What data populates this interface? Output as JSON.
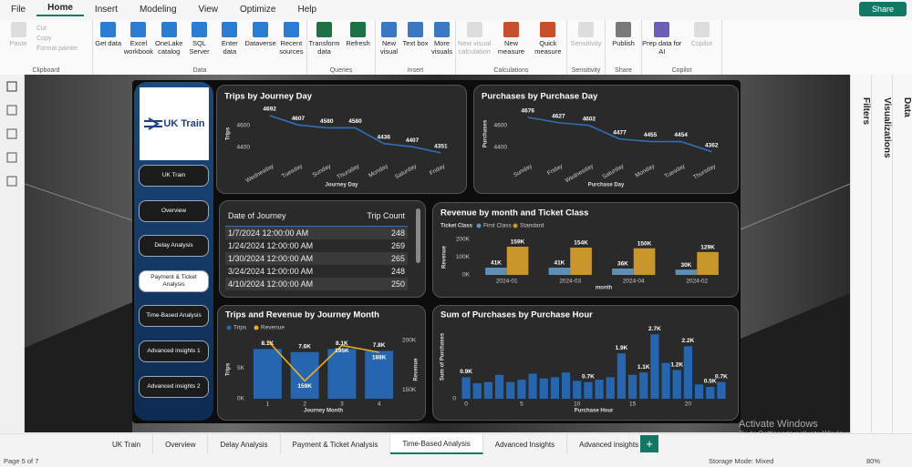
{
  "menu": [
    "File",
    "Home",
    "Insert",
    "Modeling",
    "View",
    "Optimize",
    "Help"
  ],
  "share": "Share",
  "ribbon": [
    {
      "group": "Clipboard",
      "items": [
        "Paste",
        "Cut",
        "Copy",
        "Format painter"
      ]
    },
    {
      "group": "Data",
      "items": [
        "Get data",
        "Excel workbook",
        "OneLake catalog",
        "SQL Server",
        "Enter data",
        "Dataverse",
        "Recent sources"
      ]
    },
    {
      "group": "Queries",
      "items": [
        "Transform data",
        "Refresh"
      ]
    },
    {
      "group": "Insert",
      "items": [
        "New visual",
        "Text box",
        "More visuals"
      ]
    },
    {
      "group": "Calculations",
      "items": [
        "New visual calculation",
        "New measure",
        "Quick measure"
      ]
    },
    {
      "group": "Sensitivity",
      "items": [
        "Sensitivity"
      ]
    },
    {
      "group": "Share",
      "items": [
        "Publish"
      ]
    },
    {
      "group": "Copilot",
      "items": [
        "Prep data for AI",
        "Copilot"
      ]
    }
  ],
  "panes": [
    "Filters",
    "Visualizations",
    "Data"
  ],
  "nav": {
    "logo": "UK Train",
    "buttons": [
      "UK Train",
      "Overview",
      "Delay Analysis",
      "Payment & Ticket Analysis",
      "Time-Based Analysis",
      "Advanced insights 1",
      "Advanced insights 2"
    ]
  },
  "visuals": {
    "trips_day": {
      "type": "line",
      "title": "Trips by Journey Day",
      "y_label": "Trips",
      "x_label": "Journey Day",
      "color": "#2f6fb8",
      "categories": [
        "Wednesday",
        "Tuesday",
        "Sunday",
        "Thursday",
        "Monday",
        "Saturday",
        "Friday"
      ],
      "values": [
        4692,
        4607,
        4580,
        4580,
        4436,
        4407,
        4351
      ],
      "ylim": [
        4300,
        4750
      ],
      "yticks": [
        4400,
        4600
      ]
    },
    "purchase_day": {
      "type": "line",
      "title": "Purchases by Purchase Day",
      "y_label": "Purchases",
      "x_label": "Purchase Day",
      "color": "#2f6fb8",
      "categories": [
        "Sunday",
        "Friday",
        "Wednesday",
        "Saturday",
        "Monday",
        "Tuesday",
        "Thursday"
      ],
      "values": [
        4676,
        4627,
        4602,
        4477,
        4455,
        4454,
        4362
      ],
      "ylim": [
        4300,
        4750
      ],
      "yticks": [
        4400,
        4600
      ]
    },
    "journey_table": {
      "columns": [
        "Date of Journey",
        "Trip Count"
      ],
      "rows": [
        [
          "1/7/2024 12:00:00 AM",
          248
        ],
        [
          "1/24/2024 12:00:00 AM",
          269
        ],
        [
          "1/30/2024 12:00:00 AM",
          265
        ],
        [
          "3/24/2024 12:00:00 AM",
          248
        ],
        [
          "4/10/2024 12:00:00 AM",
          250
        ]
      ]
    },
    "revenue_month": {
      "type": "grouped_bar",
      "title": "Revenue by month and Ticket Class",
      "legend_title": "Ticket Class",
      "y_label": "Revenue",
      "x_label": "month",
      "categories": [
        "2024-01",
        "2024-03",
        "2024-04",
        "2024-02"
      ],
      "series": [
        {
          "name": "First Class",
          "color": "#5f8fb4",
          "values": [
            41000,
            41000,
            36000,
            30000
          ],
          "value_labels": [
            "41K",
            "41K",
            "36K",
            "30K"
          ]
        },
        {
          "name": "Standard",
          "color": "#c8962a",
          "values": [
            159000,
            154000,
            150000,
            129000
          ],
          "value_labels": [
            "159K",
            "154K",
            "150K",
            "129K"
          ]
        }
      ],
      "ylim": [
        0,
        200000
      ],
      "yticks": [
        {
          "value": 0,
          "label": "0K"
        },
        {
          "value": 100000,
          "label": "100K"
        },
        {
          "value": 200000,
          "label": "200K"
        }
      ]
    },
    "trips_revenue": {
      "type": "combo",
      "title": "Trips and Revenue by Journey Month",
      "x_label": "Journey Month",
      "y_label": "Trips",
      "y2_label": "Revenue",
      "categories": [
        1,
        2,
        3,
        4
      ],
      "series": [
        {
          "name": "Trips",
          "color": "#2666b0",
          "values": [
            8100,
            7600,
            8100,
            7800
          ],
          "value_labels": [
            "8.1K",
            "7.6K",
            "8.1K",
            "7.8K"
          ]
        },
        {
          "name": "Revenue",
          "color": "#e8b020",
          "axis": "y2",
          "values": [
            200000,
            159000,
            195000,
            188000
          ],
          "value_labels": [
            null,
            "159K",
            "195K",
            "188K"
          ]
        }
      ],
      "ylim": [
        0,
        9500
      ],
      "yticks": [
        {
          "value": 0,
          "label": "0K"
        },
        {
          "value": 5000,
          "label": "5K"
        }
      ],
      "y2lim": [
        141000,
        200000
      ],
      "y2ticks": [
        {
          "value": 150000,
          "label": "150K"
        },
        {
          "value": 200000,
          "label": "200K"
        }
      ]
    },
    "purchase_hour": {
      "type": "bar",
      "title": "Sum of Purchases by Purchase Hour",
      "y_label": "Sum of Purchases",
      "x_label": "Purchase Hour",
      "color": "#2666b0",
      "x": [
        0,
        1,
        2,
        3,
        4,
        5,
        6,
        7,
        8,
        9,
        10,
        11,
        12,
        13,
        14,
        15,
        16,
        17,
        18,
        19,
        20,
        21,
        22,
        23
      ],
      "values": [
        900,
        650,
        700,
        1000,
        700,
        800,
        1050,
        850,
        900,
        1100,
        750,
        700,
        800,
        900,
        1900,
        1000,
        1100,
        2700,
        1500,
        1200,
        2200,
        600,
        500,
        700
      ],
      "value_labels": [
        "0.9K",
        null,
        null,
        null,
        null,
        null,
        null,
        null,
        null,
        null,
        null,
        "0.7K",
        null,
        null,
        "1.9K",
        null,
        "1.1K",
        "2.7K",
        null,
        "1.2K",
        "2.2K",
        null,
        "0.5K",
        "0.7K"
      ],
      "xlim": [
        -0.5,
        23.5
      ],
      "xticks": [
        0,
        5,
        10,
        15,
        20
      ],
      "ylim": [
        0,
        2900
      ],
      "yticks": [
        0
      ]
    }
  },
  "tabs": [
    "UK Train",
    "Overview",
    "Delay Analysis",
    "Payment & Ticket Analysis",
    "Time-Based Analysis",
    "Advanced Insights",
    "Advanced insights 2"
  ],
  "status": {
    "page": "Page 5 of 7",
    "storage": "Storage Mode: Mixed",
    "zoom": "80%"
  },
  "watermark": {
    "title": "Activate Windows",
    "subtitle": "Go to Settings to activate Windows."
  }
}
